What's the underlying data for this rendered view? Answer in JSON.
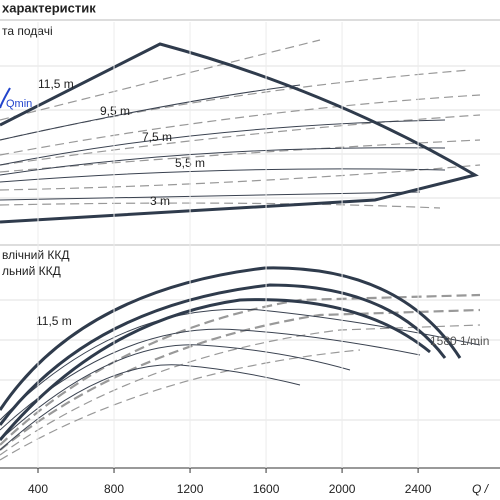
{
  "chart_data": {
    "type": "line",
    "title": "характеристик",
    "upper_label": "та подачі",
    "qmin_label": "Qmin",
    "upper_annotations": [
      "11,5 m",
      "9,5 m",
      "7,5 m",
      "5,5 m",
      "3 m"
    ],
    "lower_labels": [
      "влічний ККД",
      "льний ККД"
    ],
    "lower_annotations": [
      "11,5 m",
      "1580 1/min"
    ],
    "x_label": "Q /",
    "xlim": [
      200,
      2831
    ],
    "xticks": [
      400,
      800,
      1200,
      1600,
      2000,
      2400
    ]
  }
}
